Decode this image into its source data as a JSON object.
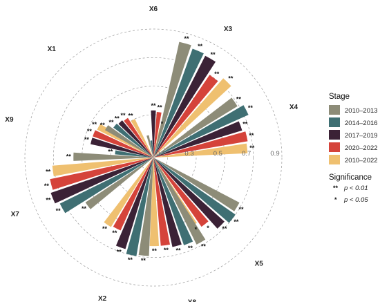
{
  "chart_data": {
    "type": "radial-bar",
    "r_ticks": [
      "0.1",
      "0.3",
      "0.5",
      "0.7",
      "0.9"
    ],
    "r_values": [
      0.1,
      0.3,
      0.5,
      0.7,
      0.9
    ],
    "r_max": 0.9,
    "series": [
      {
        "name": "2010–2013",
        "color": "#8d8c78"
      },
      {
        "name": "2014–2016",
        "color": "#3f6f73"
      },
      {
        "name": "2017–2019",
        "color": "#3b2236"
      },
      {
        "name": "2020–2022",
        "color": "#d5433a"
      },
      {
        "name": "2010–2022",
        "color": "#efc070"
      }
    ],
    "groups": [
      {
        "name": "X6",
        "bars": [
          0.16,
          0.12,
          0.33,
          0.32,
          0.21
        ],
        "sig": [
          "",
          "",
          "**",
          "**",
          "*"
        ]
      },
      {
        "name": "X3",
        "bars": [
          0.83,
          0.81,
          0.8,
          0.7,
          0.74
        ],
        "sig": [
          "**",
          "**",
          "**",
          "**",
          "**"
        ]
      },
      {
        "name": "X4",
        "bars": [
          0.69,
          0.73,
          0.65,
          0.67,
          0.66
        ],
        "sig": [
          "**",
          "**",
          "**",
          "**",
          "**"
        ]
      },
      {
        "name": "X5",
        "bars": [
          0.68,
          0.7,
          0.67,
          0.59,
          0.55
        ],
        "sig": [
          "**",
          "**",
          "**",
          "*",
          "*"
        ]
      },
      {
        "name": "X8",
        "bars": [
          0.68,
          0.65,
          0.64,
          0.62,
          0.62
        ],
        "sig": [
          "**",
          "**",
          "**",
          "**",
          "**"
        ]
      },
      {
        "name": "X2",
        "bars": [
          0.69,
          0.7,
          0.67,
          0.56,
          0.57
        ],
        "sig": [
          "**",
          "**",
          "**",
          "**",
          "**"
        ]
      },
      {
        "name": "X7",
        "bars": [
          0.57,
          0.73,
          0.76,
          0.74,
          0.71
        ],
        "sig": [
          "**",
          "**",
          "**",
          "**",
          "**"
        ]
      },
      {
        "name": "X9",
        "bars": [
          0.56,
          0.27,
          0.45,
          0.45,
          0.44
        ],
        "sig": [
          "**",
          "**",
          "**",
          "**",
          "**"
        ]
      },
      {
        "name": "X1",
        "bars": [
          0.39,
          0.35,
          0.34,
          0.33,
          0.3
        ],
        "sig": [
          "**",
          "**",
          "**",
          "**",
          "**"
        ]
      }
    ],
    "group_angles": [
      0,
      30,
      70,
      135,
      165,
      200,
      248,
      285,
      317
    ]
  },
  "legend": {
    "stage_title": "Stage",
    "significance_title": "Significance",
    "sig_items": [
      {
        "mark": "**",
        "text": "p < 0.01"
      },
      {
        "mark": "*",
        "text": "p < 0.05"
      }
    ]
  }
}
